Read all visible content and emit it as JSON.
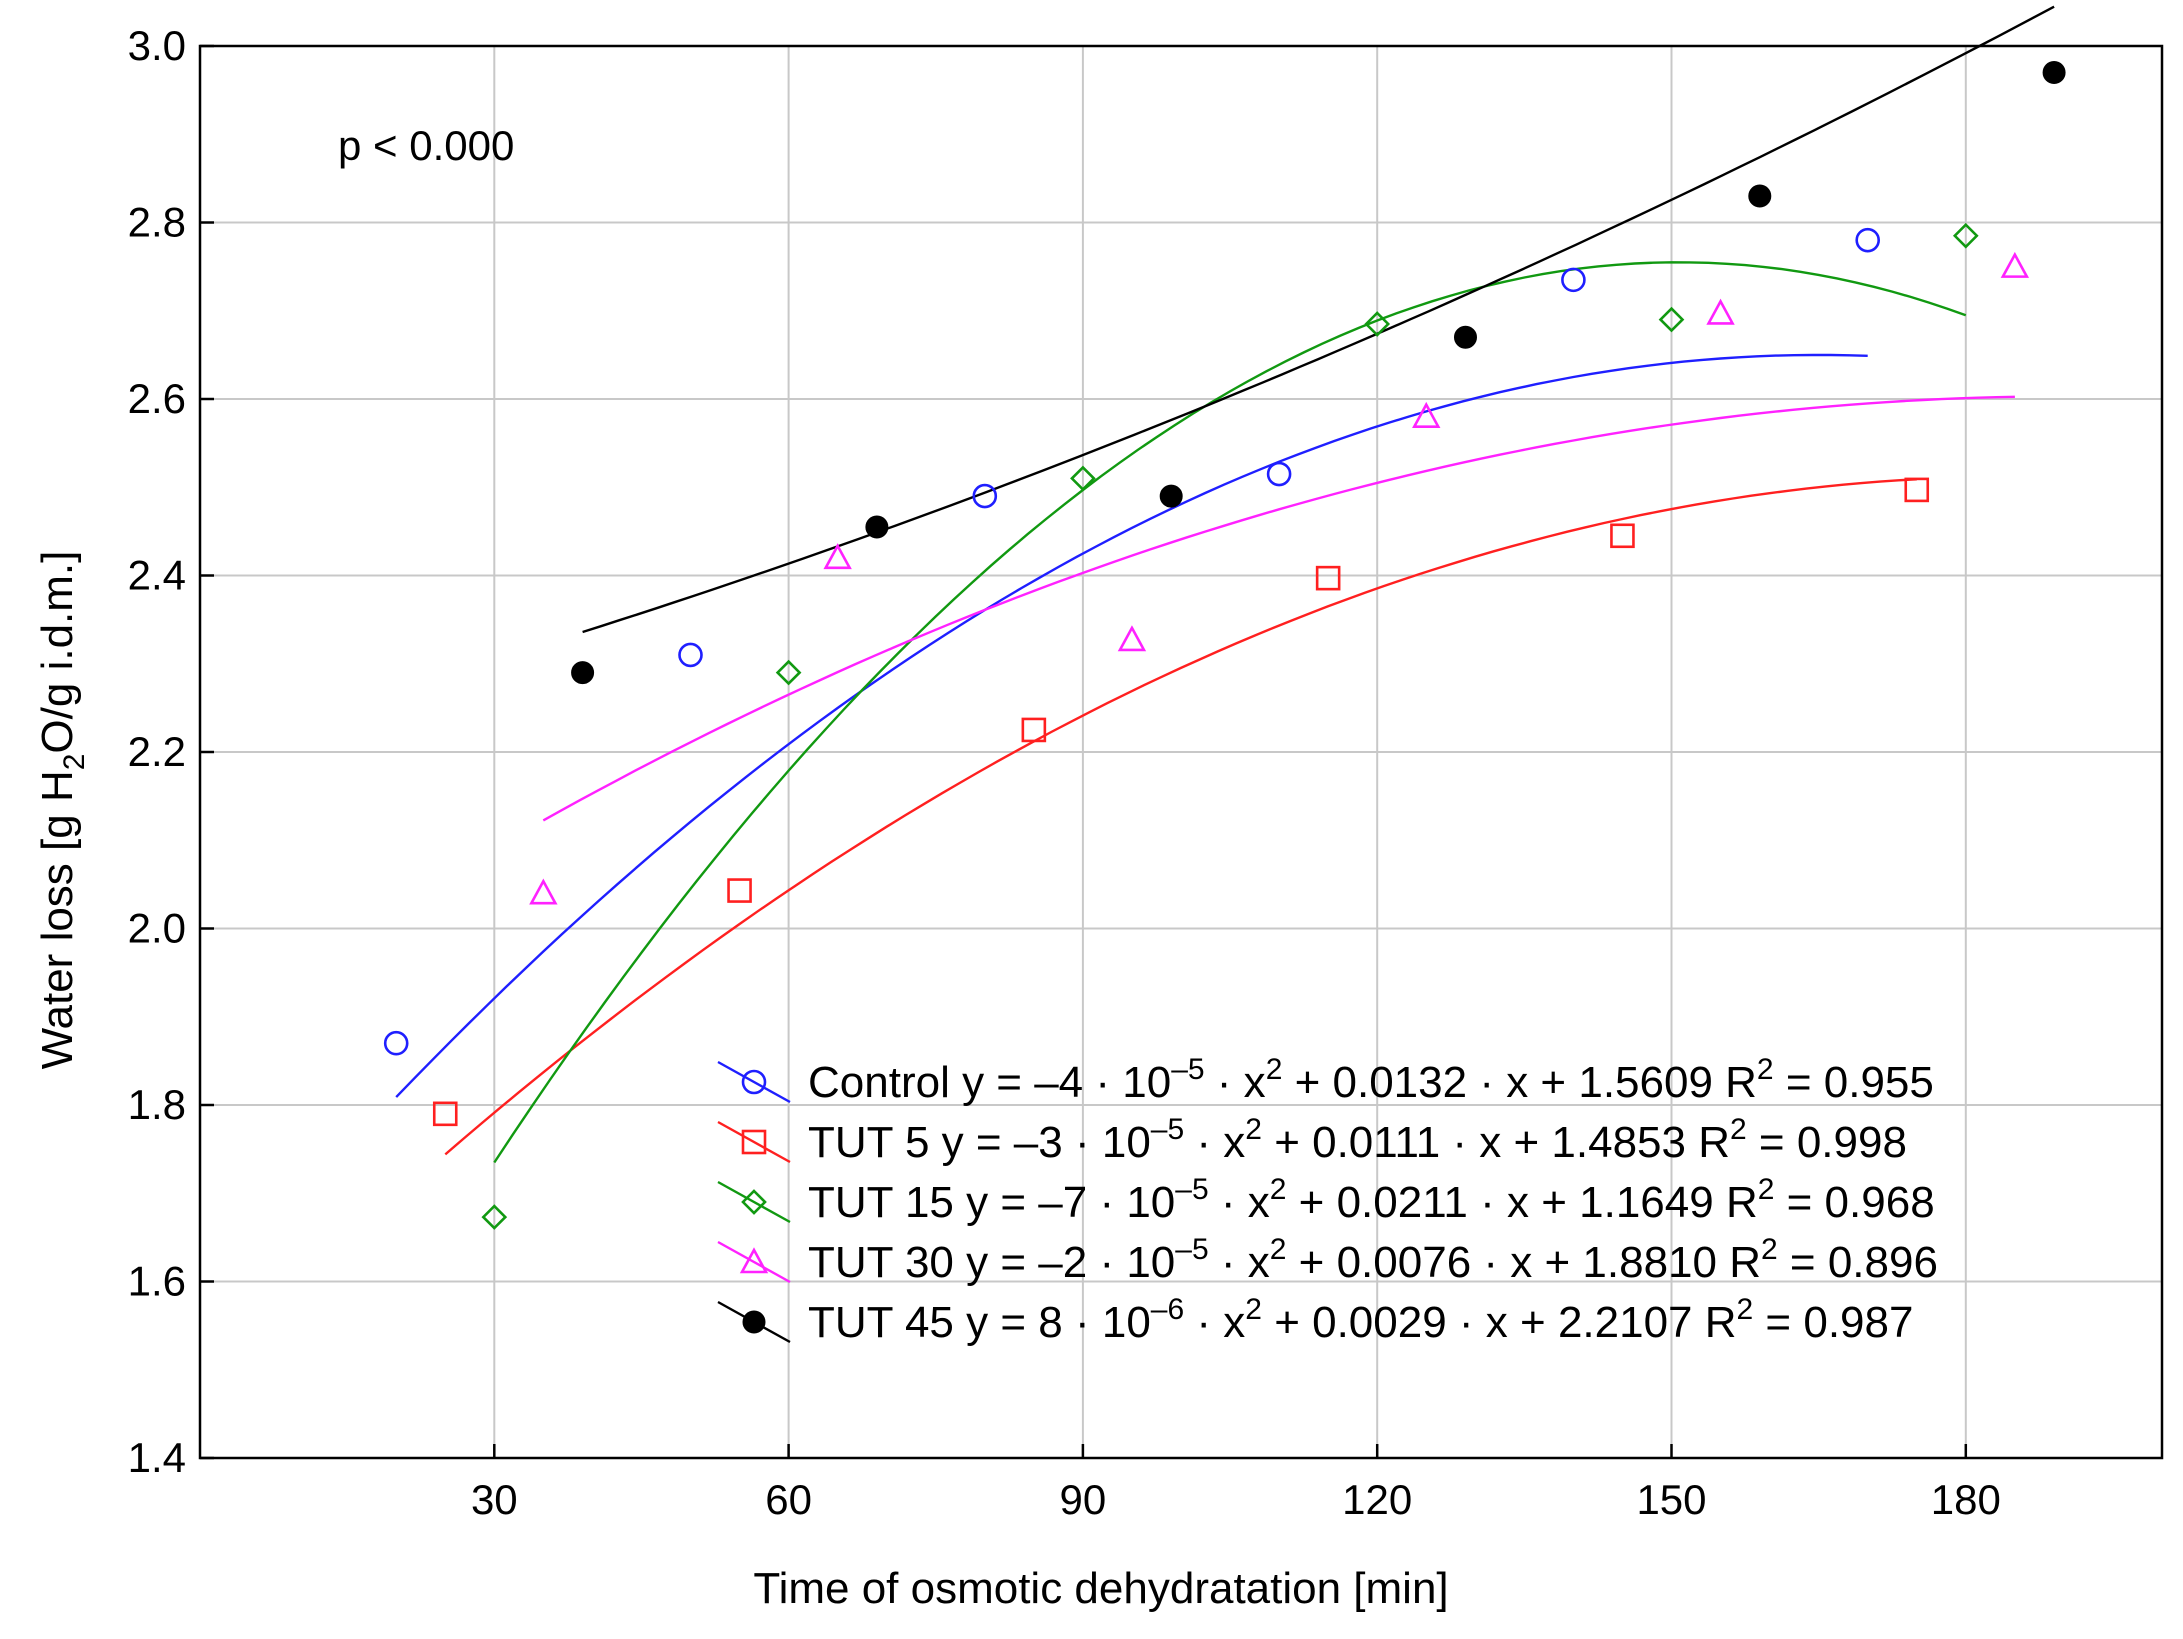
{
  "chart_data": {
    "type": "scatter",
    "annotation": "p < 0.000",
    "xlabel": "Time of osmotic dehydratation [min]",
    "ylabel": "Water loss [g H2O/g i.d.m.]",
    "ylabel_parts": {
      "pre": "Water loss [g H",
      "sub": "2",
      "post": "O/g i.d.m.]"
    },
    "xlim": [
      0,
      200
    ],
    "ylim": [
      1.4,
      3.0
    ],
    "xticks": [
      30,
      60,
      90,
      120,
      150,
      180
    ],
    "xtick_labels": [
      "30",
      "60",
      "90",
      "120",
      "150",
      "180"
    ],
    "yticks": [
      1.4,
      1.6,
      1.8,
      2.0,
      2.2,
      2.4,
      2.6,
      2.8,
      3.0
    ],
    "ytick_labels": [
      "1.4",
      "1.6",
      "1.8",
      "2.0",
      "2.2",
      "2.4",
      "2.6",
      "2.8",
      "3.0"
    ],
    "grid": true,
    "legend_position": "bottom-right",
    "series": [
      {
        "name": "Control",
        "color": "#1f1fff",
        "marker": "circle-open",
        "fit": {
          "a": -4e-05,
          "b": 0.0132,
          "c": 1.5609,
          "x_range": [
            20,
            170
          ]
        },
        "x": [
          20,
          50,
          80,
          110,
          140,
          170
        ],
        "y": [
          1.87,
          2.31,
          2.49,
          2.515,
          2.735,
          2.78
        ],
        "legend": {
          "name": "Control",
          "eq_pre": " y = –4 · 10",
          "eq_exp": "–5",
          "eq_mid": " · x",
          "eq_exp2": "2",
          "eq_post": " + 0.0132 · x + 1.5609 R",
          "r2_exp": "2",
          "r2_val": " = 0.955"
        }
      },
      {
        "name": "TUT 5",
        "color": "#ff2020",
        "marker": "square-open",
        "fit": {
          "a": -3e-05,
          "b": 0.0111,
          "c": 1.4853,
          "x_range": [
            25,
            175
          ]
        },
        "x": [
          25,
          55,
          85,
          115,
          145,
          175
        ],
        "y": [
          1.79,
          2.043,
          2.225,
          2.397,
          2.445,
          2.497
        ],
        "legend": {
          "name": "TUT 5",
          "eq_pre": " y = –3 · 10",
          "eq_exp": "–5",
          "eq_mid": " · x",
          "eq_exp2": "2",
          "eq_post": " + 0.0111 · x + 1.4853 R",
          "r2_exp": "2",
          "r2_val": " = 0.998"
        }
      },
      {
        "name": "TUT 15",
        "color": "#119911",
        "marker": "diamond-open",
        "fit": {
          "a": -7e-05,
          "b": 0.0211,
          "c": 1.1649,
          "x_range": [
            30,
            180
          ]
        },
        "x": [
          30,
          60,
          90,
          120,
          150,
          180
        ],
        "y": [
          1.673,
          2.29,
          2.51,
          2.685,
          2.69,
          2.785
        ],
        "legend": {
          "name": "TUT 15",
          "eq_pre": " y = –7 · 10",
          "eq_exp": "–5",
          "eq_mid": " · x",
          "eq_exp2": "2",
          "eq_post": " + 0.0211 · x + 1.1649 R",
          "r2_exp": "2",
          "r2_val": " = 0.968"
        }
      },
      {
        "name": "TUT 30",
        "color": "#ff22ff",
        "marker": "triangle-open",
        "fit": {
          "a": -2e-05,
          "b": 0.0076,
          "c": 1.881,
          "x_range": [
            35,
            185
          ]
        },
        "x": [
          35,
          65,
          95,
          125,
          155,
          185
        ],
        "y": [
          2.04,
          2.42,
          2.327,
          2.58,
          2.697,
          2.75
        ],
        "legend": {
          "name": "TUT 30",
          "eq_pre": " y = –2 · 10",
          "eq_exp": "–5",
          "eq_mid": " · x",
          "eq_exp2": "2",
          "eq_post": " + 0.0076 · x + 1.8810 R",
          "r2_exp": "2",
          "r2_val": " = 0.896"
        }
      },
      {
        "name": "TUT 45",
        "color": "#000000",
        "marker": "circle-filled",
        "fit": {
          "a": 8e-06,
          "b": 0.0029,
          "c": 2.2107,
          "x_range": [
            39,
            189
          ]
        },
        "x": [
          39,
          69,
          99,
          129,
          159,
          189
        ],
        "y": [
          2.29,
          2.455,
          2.49,
          2.67,
          2.83,
          2.97
        ],
        "legend": {
          "name": "TUT 45",
          "eq_pre": " y = 8 · 10",
          "eq_exp": "–6",
          "eq_mid": " · x",
          "eq_exp2": "2",
          "eq_post": " + 0.0029 · x + 2.2107 R",
          "r2_exp": "2",
          "r2_val": " = 0.987"
        }
      }
    ]
  }
}
